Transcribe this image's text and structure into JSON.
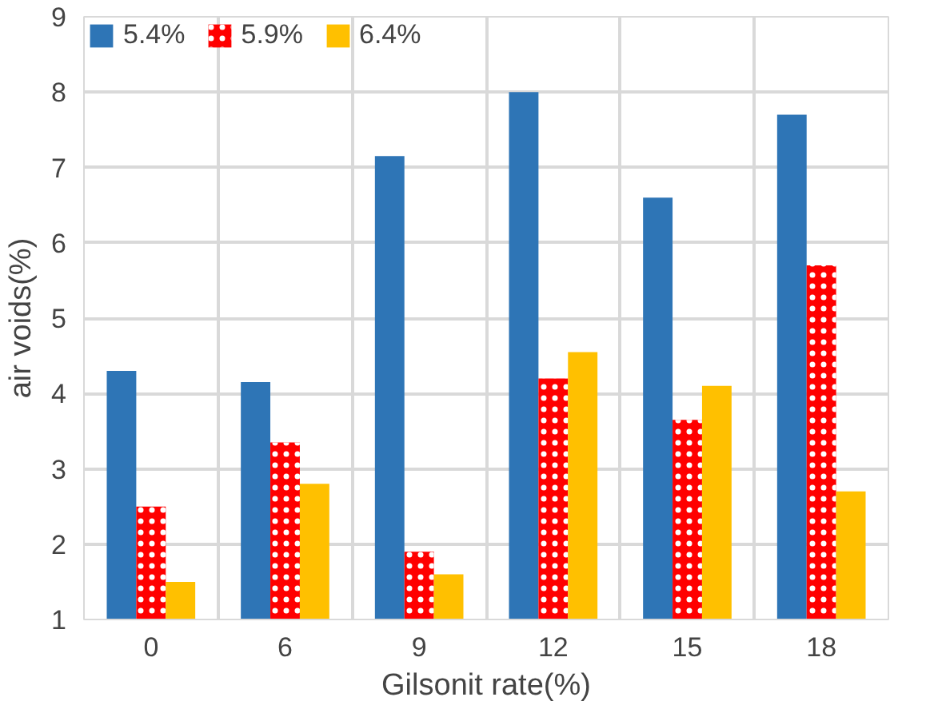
{
  "chart_data": {
    "type": "bar",
    "xlabel": "Gilsonit rate(%)",
    "ylabel": "air voids(%)",
    "categories": [
      "0",
      "6",
      "9",
      "12",
      "15",
      "18"
    ],
    "series": [
      {
        "name": "5.4%",
        "color": "#2e75b6",
        "values": [
          4.3,
          4.15,
          7.15,
          8.0,
          6.6,
          7.7
        ]
      },
      {
        "name": "5.9%",
        "color": "#ff0000",
        "values": [
          2.5,
          3.35,
          1.9,
          4.2,
          3.65,
          5.7
        ]
      },
      {
        "name": "6.4%",
        "color": "#ffc000",
        "values": [
          1.5,
          2.8,
          1.6,
          4.55,
          4.1,
          2.7
        ]
      }
    ],
    "ylim": [
      1,
      9
    ],
    "yticks": [
      1,
      2,
      3,
      4,
      5,
      6,
      7,
      8,
      9
    ],
    "grid": true,
    "legend": "top left"
  }
}
